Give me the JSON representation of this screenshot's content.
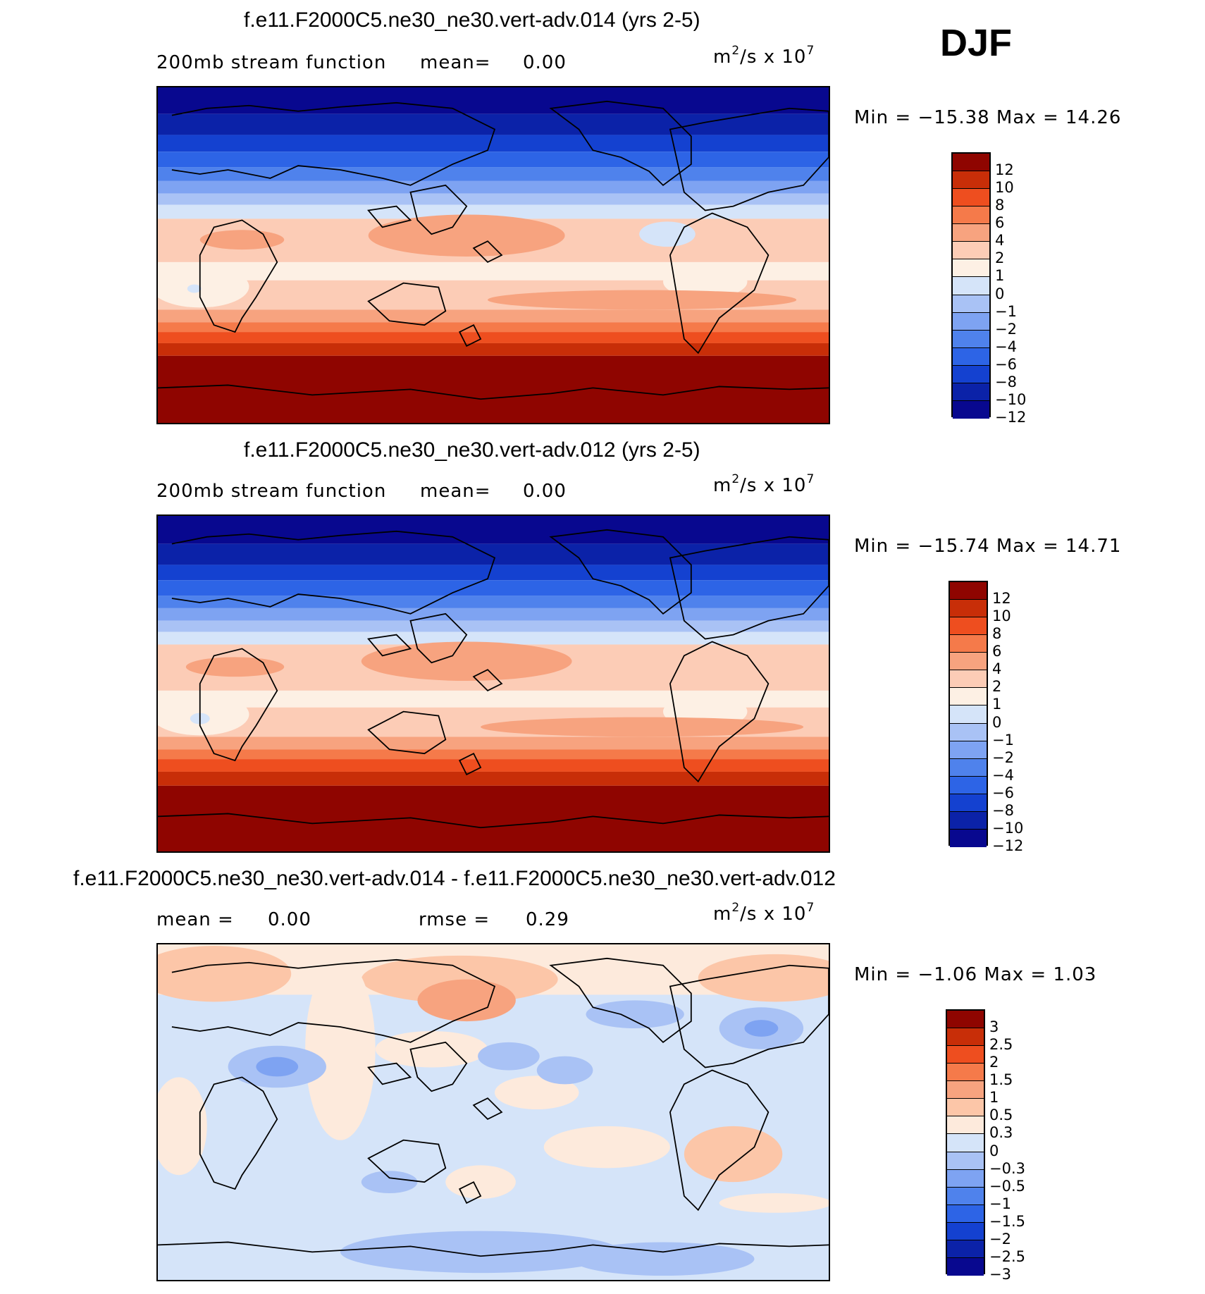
{
  "season": "DJF",
  "colors": {
    "levels14": [
      "#08088f",
      "#0b22a8",
      "#1441d0",
      "#2d64e6",
      "#4f82ec",
      "#7ea3f2",
      "#a9c2f5",
      "#d5e4f9",
      "#fdf0e4",
      "#fcccb6",
      "#f7a37f",
      "#f57a4a",
      "#ee4e1f",
      "#c82e08",
      "#8f0500"
    ],
    "diff16": [
      "#08088f",
      "#0b22a8",
      "#1441d0",
      "#2d64e6",
      "#4f82ec",
      "#7ea3f2",
      "#a9c2f5",
      "#d5e4f9",
      "#fdeadc",
      "#fcc6a8",
      "#f7a37f",
      "#f57a4a",
      "#ee4e1f",
      "#c82e08",
      "#8f0500"
    ]
  },
  "panels": [
    {
      "title": "f.e11.F2000C5.ne30_ne30.vert-adv.014 (yrs 2-5)",
      "left_text": "200mb stream function",
      "mean_label": "mean=",
      "mean_value": "0.00",
      "units_base": "m",
      "units_exp1": "2",
      "units_mid": "/s x 10",
      "units_exp2": "7",
      "minmax": "Min = −15.38 Max =  14.26",
      "colorbar_labels": [
        "12",
        "10",
        "8",
        "6",
        "4",
        "2",
        "1",
        "0",
        "−1",
        "−2",
        "−4",
        "−6",
        "−8",
        "−10",
        "−12"
      ]
    },
    {
      "title": "f.e11.F2000C5.ne30_ne30.vert-adv.012 (yrs 2-5)",
      "left_text": "200mb stream function",
      "mean_label": "mean=",
      "mean_value": "0.00",
      "units_base": "m",
      "units_exp1": "2",
      "units_mid": "/s x 10",
      "units_exp2": "7",
      "minmax": "Min = −15.74 Max =  14.71",
      "colorbar_labels": [
        "12",
        "10",
        "8",
        "6",
        "4",
        "2",
        "1",
        "0",
        "−1",
        "−2",
        "−4",
        "−6",
        "−8",
        "−10",
        "−12"
      ]
    },
    {
      "title": "f.e11.F2000C5.ne30_ne30.vert-adv.014 - f.e11.F2000C5.ne30_ne30.vert-adv.012",
      "mean_label": "mean =",
      "mean_value": "0.00",
      "rmse_label": "rmse =",
      "rmse_value": "0.29",
      "units_base": "m",
      "units_exp1": "2",
      "units_mid": "/s x 10",
      "units_exp2": "7",
      "minmax": "Min =  −1.06 Max =    1.03",
      "colorbar_labels": [
        "3",
        "2.5",
        "2",
        "1.5",
        "1",
        "0.5",
        "0.3",
        "0",
        "−0.3",
        "−0.5",
        "−1",
        "−1.5",
        "−2",
        "−2.5",
        "−3"
      ]
    }
  ]
}
